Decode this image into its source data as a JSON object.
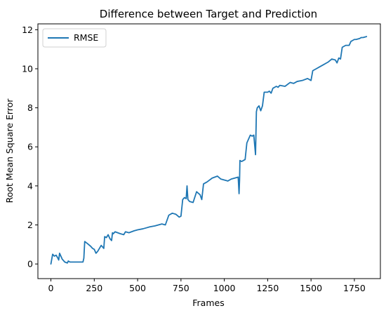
{
  "chart_data": {
    "type": "line",
    "title": "Difference between Target and Prediction",
    "xlabel": "Frames",
    "ylabel": "Root Mean Square Error",
    "xlim": [
      -75,
      1900
    ],
    "ylim": [
      -0.75,
      12.3
    ],
    "xticks": [
      0,
      250,
      500,
      750,
      1000,
      1250,
      1500,
      1750
    ],
    "yticks": [
      0,
      2,
      4,
      6,
      8,
      10,
      12
    ],
    "grid": false,
    "legend_position": "top-left",
    "color": "#1f77b4",
    "series": [
      {
        "name": "RMSE",
        "x": [
          0,
          10,
          20,
          30,
          40,
          45,
          50,
          60,
          65,
          80,
          95,
          100,
          110,
          130,
          150,
          170,
          185,
          190,
          195,
          210,
          230,
          240,
          250,
          260,
          270,
          290,
          305,
          310,
          320,
          330,
          340,
          350,
          355,
          360,
          370,
          400,
          420,
          430,
          450,
          480,
          500,
          530,
          550,
          570,
          600,
          640,
          660,
          680,
          700,
          720,
          740,
          750,
          760,
          770,
          780,
          785,
          790,
          800,
          820,
          840,
          860,
          870,
          880,
          890,
          900,
          930,
          960,
          980,
          1000,
          1020,
          1040,
          1060,
          1080,
          1085,
          1088,
          1090,
          1100,
          1110,
          1120,
          1130,
          1150,
          1160,
          1170,
          1180,
          1185,
          1190,
          1200,
          1210,
          1220,
          1230,
          1240,
          1250,
          1260,
          1270,
          1280,
          1300,
          1310,
          1320,
          1350,
          1380,
          1400,
          1420,
          1450,
          1480,
          1500,
          1510,
          1530,
          1550,
          1570,
          1590,
          1600,
          1620,
          1640,
          1650,
          1660,
          1670,
          1680,
          1690,
          1700,
          1720,
          1730,
          1740,
          1750,
          1760,
          1780,
          1790,
          1800,
          1820
        ],
        "y": [
          0.0,
          0.5,
          0.4,
          0.45,
          0.3,
          0.2,
          0.55,
          0.35,
          0.25,
          0.1,
          0.05,
          0.15,
          0.1,
          0.1,
          0.1,
          0.1,
          0.1,
          0.3,
          1.15,
          1.05,
          0.9,
          0.8,
          0.75,
          0.55,
          0.65,
          0.95,
          0.8,
          1.4,
          1.35,
          1.5,
          1.3,
          1.2,
          1.6,
          1.55,
          1.65,
          1.55,
          1.5,
          1.65,
          1.6,
          1.7,
          1.75,
          1.8,
          1.85,
          1.9,
          1.95,
          2.05,
          2.0,
          2.5,
          2.6,
          2.55,
          2.4,
          2.45,
          3.3,
          3.4,
          3.35,
          4.0,
          3.3,
          3.2,
          3.15,
          3.7,
          3.55,
          3.3,
          4.1,
          4.15,
          4.2,
          4.4,
          4.5,
          4.35,
          4.3,
          4.25,
          4.35,
          4.4,
          4.45,
          3.6,
          4.3,
          5.3,
          5.25,
          5.3,
          5.35,
          6.2,
          6.6,
          6.55,
          6.6,
          5.6,
          7.8,
          8.0,
          8.1,
          7.85,
          8.1,
          8.8,
          8.8,
          8.8,
          8.85,
          8.75,
          9.0,
          9.1,
          9.05,
          9.15,
          9.1,
          9.3,
          9.25,
          9.35,
          9.4,
          9.5,
          9.4,
          9.9,
          10.0,
          10.1,
          10.2,
          10.3,
          10.35,
          10.5,
          10.45,
          10.3,
          10.55,
          10.5,
          11.1,
          11.15,
          11.2,
          11.2,
          11.4,
          11.45,
          11.5,
          11.5,
          11.55,
          11.6,
          11.6,
          11.65
        ]
      }
    ]
  }
}
